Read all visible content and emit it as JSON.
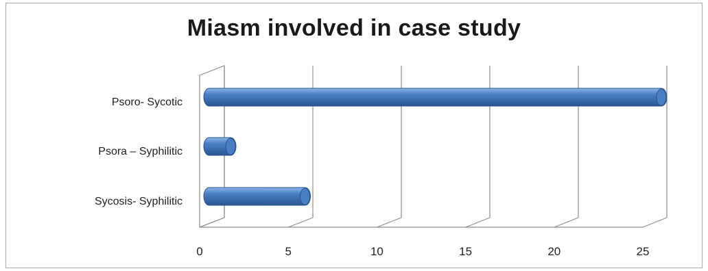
{
  "chart_data": {
    "type": "bar",
    "orientation": "horizontal",
    "style": "3d-cylinder",
    "title": "Miasm involved in case study",
    "categories": [
      "Psoro- Sycotic",
      "Psora – Syphilitic",
      "Sycosis- Syphilitic"
    ],
    "values": [
      25.5,
      1.2,
      5.4
    ],
    "xlim": [
      0,
      25
    ],
    "xticks": [
      "0",
      "5",
      "10",
      "15",
      "20",
      "25"
    ],
    "grid": true,
    "legend": "none",
    "colors": {
      "bar": "#4a7ec4",
      "bar_dark": "#2a5590",
      "bar_light": "#8fb5e6",
      "grid": "#8c8c8c"
    }
  }
}
